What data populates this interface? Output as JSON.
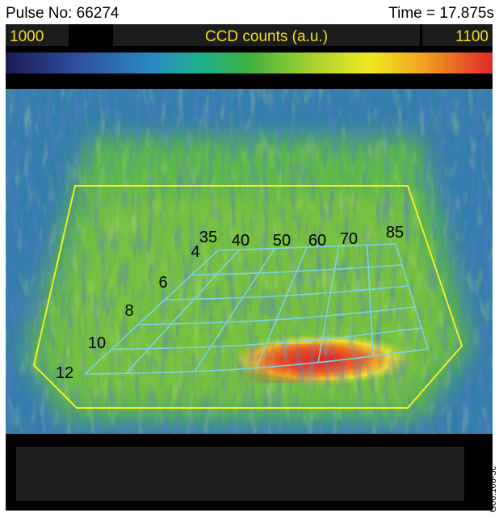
{
  "header": {
    "pulse": "Pulse No: 66274",
    "time": "Time = 17.875s"
  },
  "colorbar": {
    "min": 1000,
    "label": "CCD counts (a.u.)",
    "max": 1100
  },
  "grid": {
    "top_labels": [
      "35",
      "40",
      "50",
      "60",
      "70",
      "85"
    ],
    "left_labels": [
      "4",
      "6",
      "8",
      "10",
      "12"
    ]
  },
  "side_label": "JG06.108-5c"
}
